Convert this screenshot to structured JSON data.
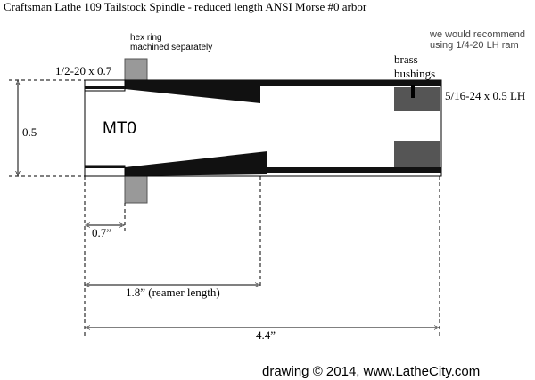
{
  "title": "Craftsman Lathe 109 Tailstock Spindle - reduced length ANSI Morse #0 arbor",
  "hex_ring_note": [
    "hex ring",
    "machined separately"
  ],
  "recommendation": [
    "we would recommend",
    "using 1/4-20 LH ram"
  ],
  "bushings_label": [
    "brass",
    "bushings"
  ],
  "left_thread": "1/2-20 x 0.7",
  "right_thread": "5/16-24 x 0.5 LH",
  "diameter": "0.5",
  "taper": "MT0",
  "dimensions": [
    "0.7”",
    "1.8” (reamer length)",
    "4.4”"
  ],
  "credit": "drawing © 2014, www.LatheCity.com"
}
